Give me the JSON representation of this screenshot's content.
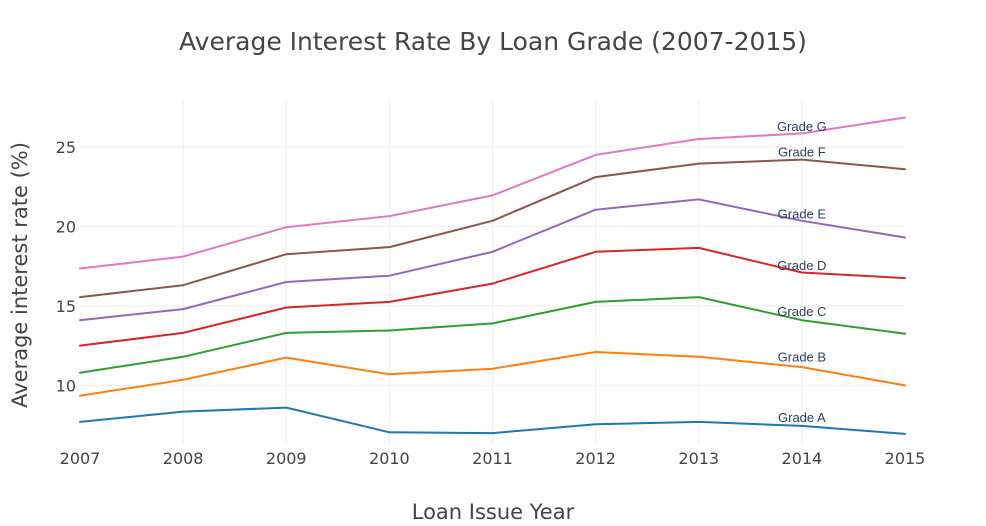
{
  "chart_data": {
    "type": "line",
    "title": "Average Interest Rate By Loan Grade (2007-2015)",
    "xlabel": "Loan Issue Year",
    "ylabel": "Average interest rate (%)",
    "x": [
      2007,
      2008,
      2009,
      2010,
      2011,
      2012,
      2013,
      2014,
      2015
    ],
    "x_ticks": [
      "2007",
      "2008",
      "2009",
      "2010",
      "2011",
      "2012",
      "2013",
      "2014",
      "2015"
    ],
    "y_ticks": [
      "10",
      "15",
      "20",
      "25"
    ],
    "y_tick_values": [
      10,
      15,
      20,
      25
    ],
    "xlim": [
      2007,
      2015
    ],
    "ylim": [
      6.25,
      27.95
    ],
    "grid": true,
    "legend": "none",
    "series": [
      {
        "name": "Grade A",
        "color": "#1f77b4",
        "values": [
          7.7,
          8.35,
          8.6,
          7.05,
          7.0,
          7.55,
          7.7,
          7.45,
          6.95
        ]
      },
      {
        "name": "Grade B",
        "color": "#ff7f0e",
        "values": [
          9.35,
          10.35,
          11.75,
          10.7,
          11.05,
          12.1,
          11.8,
          11.15,
          10.0
        ]
      },
      {
        "name": "Grade C",
        "color": "#2ca02c",
        "values": [
          10.8,
          11.8,
          13.3,
          13.45,
          13.9,
          15.25,
          15.55,
          14.1,
          13.25
        ]
      },
      {
        "name": "Grade D",
        "color": "#d62728",
        "values": [
          12.5,
          13.3,
          14.9,
          15.25,
          16.4,
          18.4,
          18.65,
          17.1,
          16.75
        ]
      },
      {
        "name": "Grade E",
        "color": "#9467bd",
        "values": [
          14.1,
          14.8,
          16.5,
          16.9,
          18.4,
          21.05,
          21.7,
          20.35,
          19.3
        ]
      },
      {
        "name": "Grade F",
        "color": "#8c564b",
        "values": [
          15.55,
          16.3,
          18.25,
          18.7,
          20.35,
          23.1,
          23.95,
          24.2,
          23.6
        ]
      },
      {
        "name": "Grade G",
        "color": "#e377c2",
        "values": [
          17.35,
          18.1,
          19.95,
          20.65,
          21.95,
          24.5,
          25.5,
          25.85,
          26.85
        ]
      }
    ],
    "annotations": [
      {
        "text": "Grade A",
        "x": 2014,
        "y": 7.95
      },
      {
        "text": "Grade B",
        "x": 2014,
        "y": 11.75
      },
      {
        "text": "Grade C",
        "x": 2014,
        "y": 14.6
      },
      {
        "text": "Grade D",
        "x": 2014,
        "y": 17.5
      },
      {
        "text": "Grade E",
        "x": 2014,
        "y": 20.75
      },
      {
        "text": "Grade F",
        "x": 2014,
        "y": 24.65
      },
      {
        "text": "Grade G",
        "x": 2014,
        "y": 26.25
      }
    ]
  }
}
